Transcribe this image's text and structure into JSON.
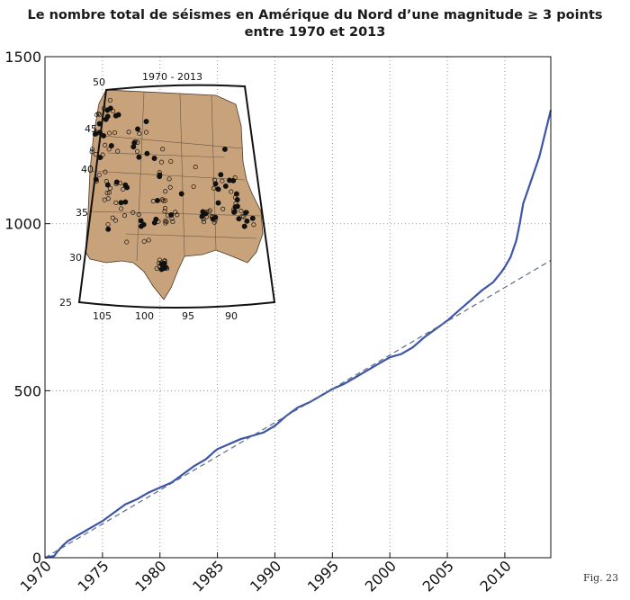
{
  "title_line1": "Le nombre total de séismes en Amérique du Nord d’une magnitude ≥ 3 points",
  "title_line2": "entre 1970 et 2013",
  "figure_label": "Fig. 23",
  "colors": {
    "cumulative": "#3c55a8",
    "trend": "#5a6a8a",
    "map_fill": "#c8a27a",
    "grid": "#9a9a9a"
  },
  "chart_data": {
    "type": "line",
    "title": "Le nombre total de séismes en Amérique du Nord d’une magnitude ≥ 3 points entre 1970 et 2013",
    "xlim": [
      1970,
      2014
    ],
    "ylim": [
      0,
      1500
    ],
    "x_ticks": [
      1970,
      1975,
      1980,
      1985,
      1990,
      1995,
      2000,
      2005,
      2010
    ],
    "y_ticks": [
      0,
      500,
      1000,
      1500
    ],
    "grid": true,
    "series": [
      {
        "style": "solid",
        "x": [
          1970,
          1970.8,
          1971,
          1971.5,
          1972,
          1973,
          1974,
          1975,
          1976,
          1977,
          1978,
          1979,
          1980,
          1981,
          1982,
          1983,
          1984,
          1984.8,
          1985,
          1986,
          1987,
          1988,
          1989,
          1990,
          1991,
          1992,
          1993,
          1994,
          1995,
          1996,
          1997,
          1998,
          1999,
          2000,
          2001,
          2002,
          2003,
          2004,
          2005,
          2006,
          2007,
          2008,
          2009,
          2009.7,
          2010,
          2010.5,
          2011,
          2011.3,
          2011.6,
          2012,
          2012.5,
          2013,
          2013.5,
          2014
        ],
        "y": [
          0,
          5,
          15,
          35,
          50,
          70,
          90,
          110,
          135,
          160,
          175,
          195,
          210,
          225,
          250,
          275,
          295,
          320,
          325,
          340,
          355,
          365,
          375,
          395,
          425,
          450,
          465,
          485,
          505,
          520,
          540,
          560,
          580,
          600,
          610,
          630,
          660,
          685,
          710,
          740,
          770,
          800,
          825,
          855,
          870,
          900,
          950,
          1000,
          1060,
          1100,
          1150,
          1200,
          1270,
          1340
        ]
      },
      {
        "style": "dashed",
        "x": [
          1970,
          2014
        ],
        "y": [
          0,
          890
        ]
      }
    ]
  },
  "inset_map": {
    "title": "1970 - 2013",
    "lat_labels": [
      "50",
      "45",
      "40",
      "35",
      "30",
      "25"
    ],
    "lon_labels": [
      "105",
      "100",
      "95",
      "90"
    ]
  }
}
